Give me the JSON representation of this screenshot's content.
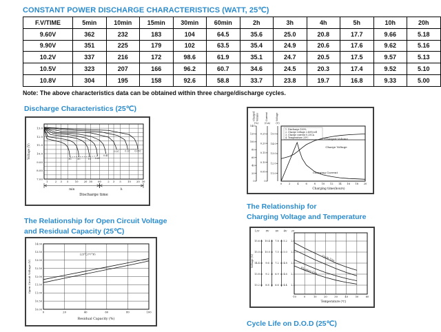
{
  "page": {
    "title": "CONSTANT POWER DISCHARGE CHARACTERISTICS (WATT, 25℃)",
    "note": "Note: The above characteristics data can be obtained within three charge/discharge cycles.",
    "accent_color": "#2b8ccd"
  },
  "table": {
    "columns": [
      "F.V/TIME",
      "5min",
      "10min",
      "15min",
      "30min",
      "60min",
      "2h",
      "3h",
      "4h",
      "5h",
      "10h",
      "20h"
    ],
    "rows": [
      {
        "label": "9.60V",
        "values": [
          "362",
          "232",
          "183",
          "104",
          "64.5",
          "35.6",
          "25.0",
          "20.8",
          "17.7",
          "9.66",
          "5.18"
        ]
      },
      {
        "label": "9.90V",
        "values": [
          "351",
          "225",
          "179",
          "102",
          "63.5",
          "35.4",
          "24.9",
          "20.6",
          "17.6",
          "9.62",
          "5.16"
        ]
      },
      {
        "label": "10.2V",
        "values": [
          "337",
          "216",
          "172",
          "98.6",
          "61.9",
          "35.1",
          "24.7",
          "20.5",
          "17.5",
          "9.57",
          "5.13"
        ]
      },
      {
        "label": "10.5V",
        "values": [
          "323",
          "207",
          "166",
          "96.2",
          "60.7",
          "34.6",
          "24.5",
          "20.3",
          "17.4",
          "9.52",
          "5.10"
        ]
      },
      {
        "label": "10.8V",
        "values": [
          "304",
          "195",
          "158",
          "92.6",
          "58.8",
          "33.7",
          "23.8",
          "19.7",
          "16.8",
          "9.33",
          "5.00"
        ]
      }
    ]
  },
  "sections": {
    "discharge": {
      "heading": "Discharge Characteristics (25℃)"
    },
    "ocv": {
      "heading_line1": "The Relationship for Open Circuit Voltage",
      "heading_line2": "and Residual Capacity (25℃)"
    },
    "charge_temp": {
      "heading_line1": "The Relationship for",
      "heading_line2": "Charging Voltage and Temperature"
    },
    "cycle_life": {
      "heading": "Cycle Life on D.O.D (25℃)"
    }
  },
  "chart_data": [
    {
      "id": "discharge",
      "type": "line",
      "title": "Discharge Characteristics (25℃)",
      "xlabel": "Discharge time",
      "ylabel": "Voltage (V)",
      "ylim": [
        7.0,
        13.5
      ],
      "y_ticks": [
        "13.0",
        "12.0",
        "11.0",
        "10.0",
        "9.00",
        "8.00",
        "7.00"
      ],
      "x_ticks_min": [
        1,
        2,
        3,
        5,
        10,
        20,
        30,
        60
      ],
      "x_ticks_h": [
        2,
        3,
        5,
        10,
        20,
        30
      ],
      "x_unit_labels": [
        "min",
        "h"
      ],
      "grid": true,
      "series": [
        {
          "label": "3C",
          "points": [
            [
              0.8,
              12.9
            ],
            [
              1,
              11.75
            ],
            [
              2,
              11.5
            ],
            [
              3,
              11.35
            ],
            [
              4,
              11.15
            ],
            [
              5,
              10.8
            ],
            [
              5.6,
              10.3
            ],
            [
              6,
              9.6
            ]
          ]
        },
        {
          "label": "2C",
          "points": [
            [
              0.8,
              12.95
            ],
            [
              1.1,
              12.0
            ],
            [
              2,
              11.85
            ],
            [
              4,
              11.7
            ],
            [
              6,
              11.55
            ],
            [
              8,
              11.3
            ],
            [
              10,
              10.9
            ],
            [
              11.5,
              10.2
            ],
            [
              12,
              9.6
            ]
          ]
        },
        {
          "label": "1C",
          "points": [
            [
              0.8,
              13.0
            ],
            [
              1.3,
              12.25
            ],
            [
              3,
              12.1
            ],
            [
              6,
              11.95
            ],
            [
              10,
              11.8
            ],
            [
              15,
              11.55
            ],
            [
              20,
              11.2
            ],
            [
              24,
              10.7
            ],
            [
              26.5,
              10.0
            ],
            [
              27.5,
              9.6
            ]
          ]
        },
        {
          "label": "0.6C",
          "points": [
            [
              0.8,
              13.0
            ],
            [
              1.6,
              12.4
            ],
            [
              5,
              12.25
            ],
            [
              10,
              12.1
            ],
            [
              20,
              11.85
            ],
            [
              30,
              11.55
            ],
            [
              40,
              11.15
            ],
            [
              47,
              10.55
            ],
            [
              51,
              9.7
            ]
          ]
        },
        {
          "label": "0.4C",
          "points": [
            [
              0.8,
              13.05
            ],
            [
              2,
              12.5
            ],
            [
              10,
              12.35
            ],
            [
              30,
              12.05
            ],
            [
              60,
              11.6
            ],
            [
              80,
              11.1
            ],
            [
              92,
              10.5
            ],
            [
              98,
              10.0
            ]
          ]
        },
        {
          "label": "0.2C",
          "points": [
            [
              0.8,
              13.05
            ],
            [
              3,
              12.65
            ],
            [
              30,
              12.45
            ],
            [
              120,
              11.95
            ],
            [
              180,
              11.4
            ],
            [
              210,
              10.85
            ],
            [
              225,
              10.5
            ]
          ]
        },
        {
          "label": "0.1C",
          "points": [
            [
              0.8,
              13.1
            ],
            [
              5,
              12.8
            ],
            [
              60,
              12.6
            ],
            [
              240,
              12.15
            ],
            [
              420,
              11.65
            ],
            [
              500,
              11.0
            ],
            [
              530,
              10.55
            ]
          ]
        },
        {
          "label": "0.05C",
          "points": [
            [
              0.8,
              13.1
            ],
            [
              8,
              12.9
            ],
            [
              120,
              12.75
            ],
            [
              600,
              12.25
            ],
            [
              900,
              11.75
            ],
            [
              1100,
              11.1
            ],
            [
              1180,
              10.55
            ]
          ]
        }
      ]
    },
    {
      "id": "charging",
      "type": "line",
      "xlabel": "Charging time(hours)",
      "x_ticks": [
        0,
        2,
        4,
        6,
        8,
        10,
        12,
        14,
        16,
        18,
        20
      ],
      "grid": false,
      "axes": [
        {
          "name": "Charged Volume",
          "unit": "(%)",
          "ticks": [
            "140",
            "120",
            "100",
            "80",
            "60",
            "40",
            "20",
            "0"
          ]
        },
        {
          "name": "Current",
          "unit": "(CA)",
          "ticks": [
            "0.25",
            "0.20",
            "0.15",
            "0.10",
            "0.05",
            "0"
          ]
        },
        {
          "name": "Voltage",
          "unit": "(V)",
          "ticks": [
            "15.0",
            "14.0",
            "13.0",
            "12.0",
            "11.0"
          ]
        }
      ],
      "annotations": [
        "1. Discharge 100%",
        "2. Charge voltage 2.40V/cell",
        "3. Charge current 0.25CA",
        "4. Temperature 25℃"
      ],
      "series": [
        {
          "label": "Charged Volume",
          "axis": "%",
          "points": [
            [
              0,
              57
            ],
            [
              2,
              63
            ],
            [
              3,
              68
            ],
            [
              4,
              76
            ],
            [
              5,
              85
            ],
            [
              6,
              93
            ],
            [
              8,
              103
            ],
            [
              10,
              109
            ],
            [
              12,
              113
            ],
            [
              14,
              116
            ],
            [
              16,
              118
            ],
            [
              18,
              119
            ],
            [
              20,
              120
            ]
          ]
        },
        {
          "label": "Charge Voltage",
          "axis": "V",
          "points": [
            [
              0,
              14.4
            ],
            [
              20,
              14.4
            ]
          ]
        },
        {
          "label": "Charging Current",
          "axis": "CA",
          "points": [
            [
              0,
              0
            ],
            [
              3.8,
              0.205
            ],
            [
              4.3,
              0.165
            ],
            [
              5,
              0.12
            ],
            [
              6,
              0.085
            ],
            [
              8,
              0.05
            ],
            [
              10,
              0.033
            ],
            [
              12,
              0.024
            ],
            [
              14,
              0.018
            ],
            [
              16,
              0.014
            ],
            [
              18,
              0.012
            ],
            [
              20,
              0.01
            ]
          ]
        }
      ]
    },
    {
      "id": "ocv",
      "type": "line",
      "xlabel": "Residual Capacity (%)",
      "ylabel": "Open Circuit Voltage (V)",
      "annotation": "(25℃/77°F)",
      "y_ticks": [
        "14.00",
        "13.50",
        "13.00",
        "12.50",
        "12.00",
        "11.50",
        "11.00",
        "10.50",
        "10.00"
      ],
      "x_ticks": [
        "0",
        "20",
        "40",
        "60",
        "80",
        "100"
      ],
      "grid": true,
      "series": [
        {
          "label": "upper",
          "points": [
            [
              0,
              11.82
            ],
            [
              20,
              12.08
            ],
            [
              40,
              12.33
            ],
            [
              60,
              12.58
            ],
            [
              80,
              12.84
            ],
            [
              100,
              13.1
            ]
          ]
        },
        {
          "label": "lower",
          "points": [
            [
              0,
              11.63
            ],
            [
              20,
              11.9
            ],
            [
              40,
              12.16
            ],
            [
              60,
              12.42
            ],
            [
              80,
              12.68
            ],
            [
              100,
              12.95
            ]
          ]
        }
      ]
    },
    {
      "id": "charge_temp",
      "type": "line",
      "xlabel": "Temperature (℃)",
      "ylabel": "Voltage (V)",
      "x_ticks": [
        -10,
        0,
        10,
        20,
        30,
        40,
        50,
        60
      ],
      "grid": true,
      "voltage_scales": [
        {
          "label": "12V",
          "ticks": [
            "15.6",
            "15.0",
            "14.4",
            "13.8",
            "13.2"
          ]
        },
        {
          "label": "8V",
          "ticks": [
            "10.4",
            "10.0",
            "9.6",
            "9.2",
            "8.8"
          ]
        },
        {
          "label": "6V",
          "ticks": [
            "7.8",
            "7.5",
            "7.2",
            "6.9",
            "6.6"
          ]
        },
        {
          "label": "4V",
          "ticks": [
            "5.2",
            "5.0",
            "4.8",
            "4.6",
            "4.4"
          ]
        },
        {
          "label": "2V",
          "ticks": [
            "2.6",
            "2.5",
            "2.4",
            "2.3",
            "2.2"
          ]
        }
      ],
      "curve_labels": [
        "Cycle Use",
        "Floating Use"
      ],
      "series": [
        {
          "label": "Cycle Use upper",
          "points": [
            [
              -10,
              2.585
            ],
            [
              0,
              2.535
            ],
            [
              10,
              2.49
            ],
            [
              20,
              2.445
            ],
            [
              30,
              2.4
            ],
            [
              40,
              2.365
            ],
            [
              50,
              2.335
            ]
          ]
        },
        {
          "label": "Cycle Use lower",
          "points": [
            [
              -10,
              2.52
            ],
            [
              0,
              2.475
            ],
            [
              10,
              2.43
            ],
            [
              20,
              2.39
            ],
            [
              30,
              2.35
            ],
            [
              40,
              2.315
            ],
            [
              50,
              2.285
            ]
          ]
        },
        {
          "label": "Floating Use upper",
          "points": [
            [
              -10,
              2.43
            ],
            [
              0,
              2.39
            ],
            [
              10,
              2.35
            ],
            [
              20,
              2.315
            ],
            [
              30,
              2.285
            ],
            [
              40,
              2.26
            ],
            [
              50,
              2.24
            ]
          ]
        },
        {
          "label": "Floating Use lower",
          "points": [
            [
              -10,
              2.375
            ],
            [
              0,
              2.335
            ],
            [
              10,
              2.3
            ],
            [
              20,
              2.27
            ],
            [
              30,
              2.245
            ],
            [
              40,
              2.225
            ],
            [
              50,
              2.21
            ]
          ]
        }
      ]
    }
  ]
}
